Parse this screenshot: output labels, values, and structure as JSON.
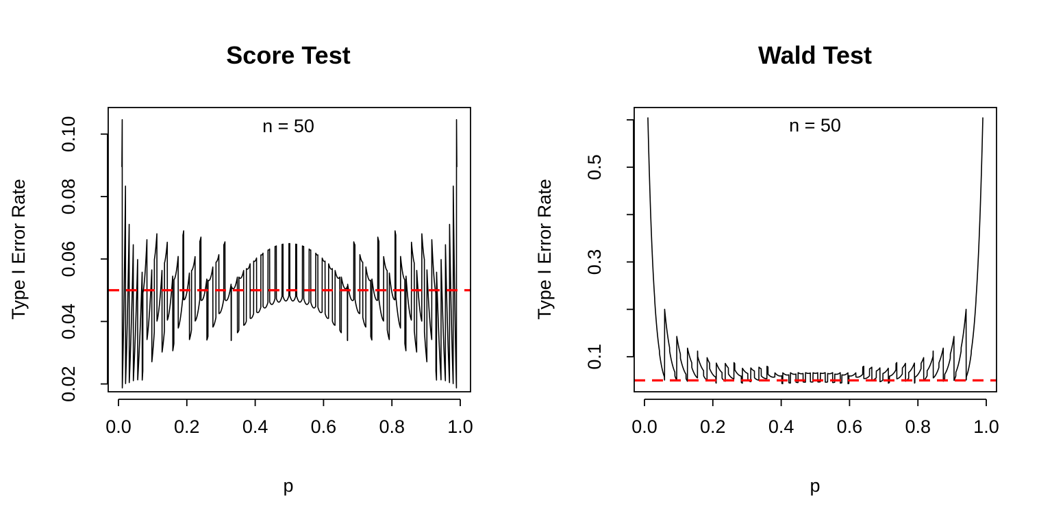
{
  "colors": {
    "series": "#000000",
    "reference": "#ff0000"
  },
  "chart_data": [
    {
      "type": "line",
      "title": "Score Test",
      "xlabel": "p",
      "ylabel": "Type I Error Rate",
      "annotation": "n = 50",
      "n": 50,
      "alpha": 0.05,
      "test": "score",
      "xlim": [
        -0.03,
        1.03
      ],
      "ylim": [
        0.0175,
        0.1085
      ],
      "xticks": [
        0.0,
        0.2,
        0.4,
        0.6,
        0.8,
        1.0
      ],
      "xtick_labels": [
        "0.0",
        "0.2",
        "0.4",
        "0.6",
        "0.8",
        "1.0"
      ],
      "yticks": [
        0.02,
        0.04,
        0.06,
        0.08,
        0.1
      ],
      "ytick_labels": [
        "0.02",
        "0.04",
        "0.06",
        "0.08",
        "0.10"
      ],
      "p_range": [
        0.01,
        0.99
      ],
      "reference_line": {
        "y": 0.05,
        "style": "dashed",
        "color": "#ff0000"
      }
    },
    {
      "type": "line",
      "title": "Wald Test",
      "xlabel": "p",
      "ylabel": "Type I Error Rate",
      "annotation": "n = 50",
      "n": 50,
      "alpha": 0.05,
      "test": "wald",
      "xlim": [
        -0.03,
        1.03
      ],
      "ylim": [
        0.026,
        0.626
      ],
      "xticks": [
        0.0,
        0.2,
        0.4,
        0.6,
        0.8,
        1.0
      ],
      "xtick_labels": [
        "0.0",
        "0.2",
        "0.4",
        "0.6",
        "0.8",
        "1.0"
      ],
      "yticks": [
        0.1,
        0.2,
        0.3,
        0.4,
        0.5,
        0.6
      ],
      "ytick_labels": [
        "0.1",
        "",
        "0.3",
        "",
        "0.5",
        ""
      ],
      "p_range": [
        0.01,
        0.99
      ],
      "reference_line": {
        "y": 0.05,
        "style": "dashed",
        "color": "#ff0000"
      }
    }
  ]
}
